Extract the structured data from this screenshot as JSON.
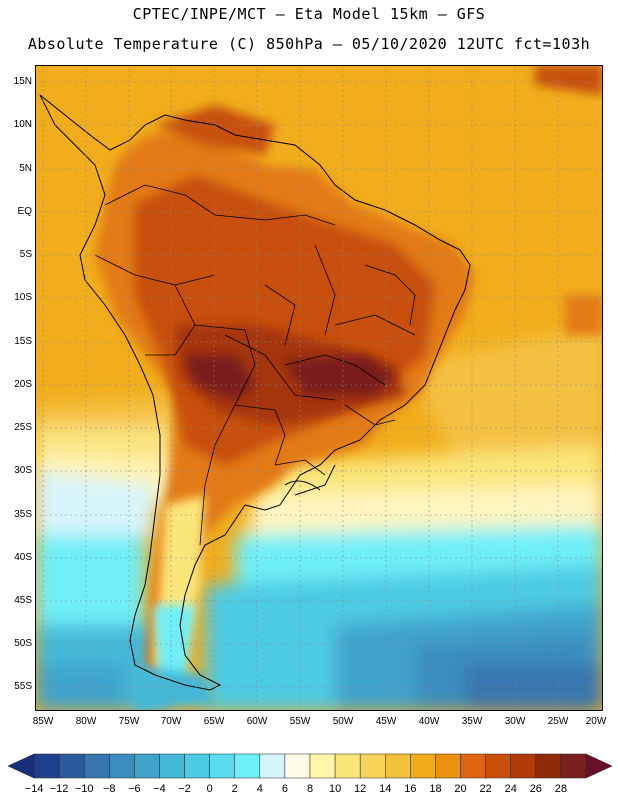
{
  "title_line1": "CPTEC/INPE/MCT –  Eta Model 15km – GFS",
  "title_line2": "Absolute Temperature (C) 850hPa – 05/10/2020 12UTC fct=103h",
  "latitude_labels": [
    "15N",
    "10N",
    "5N",
    "EQ",
    "5S",
    "10S",
    "15S",
    "20S",
    "25S",
    "30S",
    "35S",
    "40S",
    "45S",
    "50S",
    "55S"
  ],
  "longitude_labels": [
    "85W",
    "80W",
    "75W",
    "70W",
    "65W",
    "60W",
    "55W",
    "50W",
    "45W",
    "40W",
    "35W",
    "30W",
    "25W",
    "20W"
  ],
  "colorbar": {
    "labels": [
      "-14",
      "-12",
      "-10",
      "-8",
      "-6",
      "-4",
      "-2",
      "0",
      "2",
      "4",
      "6",
      "8",
      "10",
      "12",
      "14",
      "16",
      "18",
      "20",
      "22",
      "24",
      "26",
      "28"
    ],
    "colors": [
      "#1f3f8f",
      "#2c5a9e",
      "#3776b0",
      "#3b8dbf",
      "#3fa3cc",
      "#45b8d8",
      "#4ecbe4",
      "#5bdcee",
      "#6feff8",
      "#d5f3fb",
      "#fffbe6",
      "#fff7a8",
      "#fbe67a",
      "#f8d55a",
      "#f3c13a",
      "#f0ac1a",
      "#eb9010",
      "#e06410",
      "#c8500c",
      "#b03a0a",
      "#8f2a08",
      "#7a1f1f"
    ],
    "left_triangle_color": "#1a2f7a",
    "right_triangle_color": "#6a0f2a"
  }
}
